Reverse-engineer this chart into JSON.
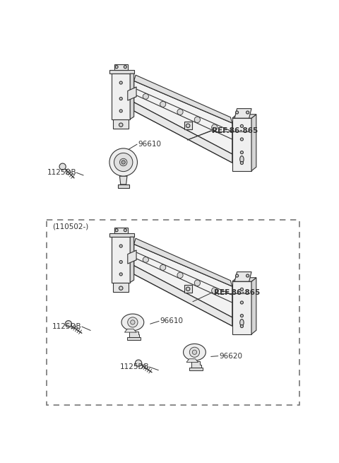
{
  "background_color": "#ffffff",
  "fig_width": 4.8,
  "fig_height": 6.55,
  "dpi": 100,
  "line_color": "#333333",
  "fill_light": "#f5f5f5",
  "fill_mid": "#e8e8e8",
  "fill_dark": "#d8d8d8",
  "top_ref_label": "REF.86-865",
  "bot_ref_label": "REF.86-865",
  "box_label": "(110502-)"
}
